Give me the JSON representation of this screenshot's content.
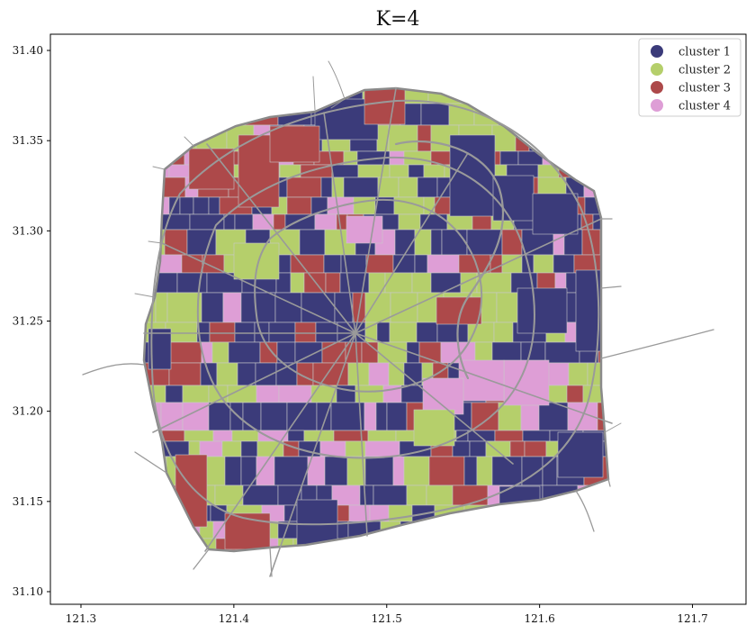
{
  "chart_data": {
    "type": "map",
    "title": "K=4",
    "x_ticks": [
      "121.3",
      "121.4",
      "121.5",
      "121.6",
      "121.7"
    ],
    "y_ticks": [
      "31.10",
      "31.15",
      "31.20",
      "31.25",
      "31.30",
      "31.35",
      "31.40"
    ],
    "xlim": [
      121.28,
      121.735
    ],
    "ylim": [
      31.093,
      31.409
    ],
    "legend": {
      "placement": "top-right",
      "entries": [
        {
          "label": "cluster 1",
          "color": "#3b3b7a"
        },
        {
          "label": "cluster 2",
          "color": "#b5cf6b"
        },
        {
          "label": "cluster 3",
          "color": "#ad494a"
        },
        {
          "label": "cluster 4",
          "color": "#de9ed6"
        }
      ]
    },
    "road_color": "#9a9a9a"
  }
}
